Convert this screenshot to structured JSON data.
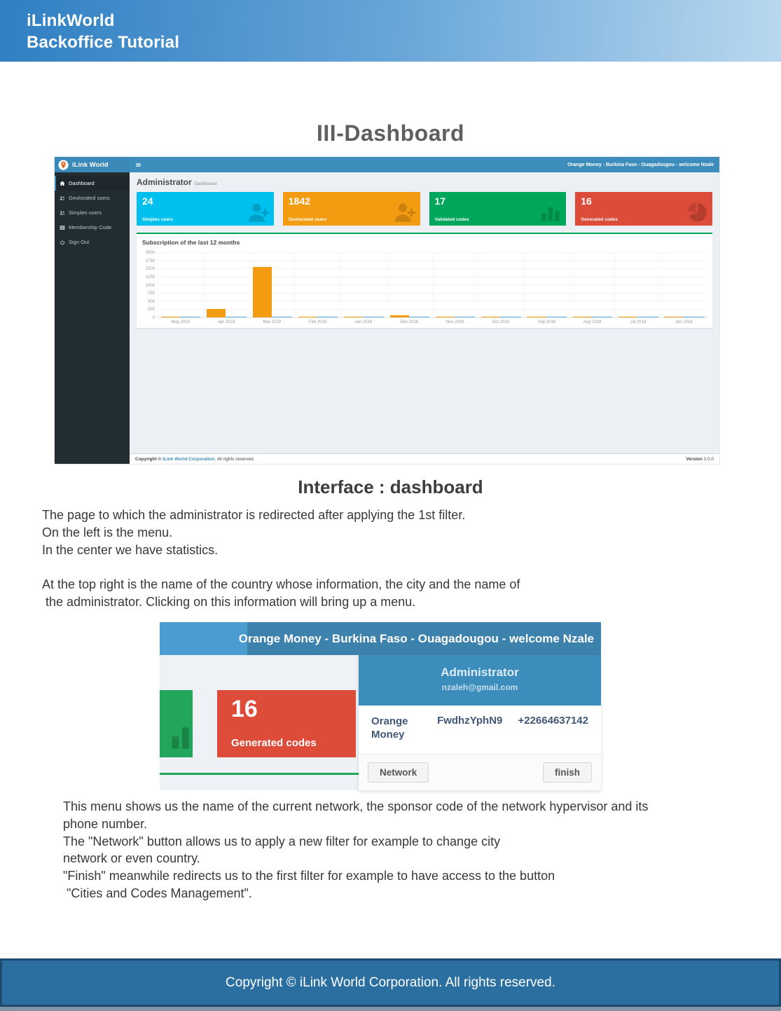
{
  "page": {
    "header": {
      "line1": "iLinkWorld",
      "line2": "Backoffice Tutorial"
    },
    "title": "III-Dashboard",
    "caption": "Interface : dashboard",
    "paragraph1": "The page to which the administrator is redirected after applying the 1st filter.\nOn the left is the menu.\nIn the center we have statistics.\n\nAt the top right is the name of the country whose information, the city and the name of\n the administrator. Clicking on this information will bring up a menu.",
    "paragraph2": "This menu shows us the name of the current network, the sponsor code of the network hypervisor and its\nphone number.\nThe \"Network\" button allows us to apply a new filter for example to change city\nnetwork or even country.\n\"Finish\" meanwhile redirects us to the first filter for example to have access to the button\n \"Cities and Codes Management\".",
    "footer_text": "Copyright © iLink World Corporation. All rights reserved."
  },
  "dashboard": {
    "brand": "iLink World",
    "user_menu_text": "Orange Money - Burkina Faso - Ouagadougou - welcome Nzale",
    "page_heading": "Administrator",
    "page_subheading": "Dashboard",
    "sidebar": [
      {
        "label": "Dashboard",
        "icon": "home-icon",
        "active": true
      },
      {
        "label": "Geolocated users",
        "icon": "users-icon",
        "active": false
      },
      {
        "label": "Simples users",
        "icon": "users-icon",
        "active": false
      },
      {
        "label": "Membership Code",
        "icon": "table-icon",
        "active": false
      },
      {
        "label": "Sign Out",
        "icon": "power-icon",
        "active": false
      }
    ],
    "cards": [
      {
        "value": "24",
        "label": "Simples users",
        "color": "#00c0ef",
        "icon": "user-plus-icon"
      },
      {
        "value": "1842",
        "label": "Geolocated users",
        "color": "#f39c12",
        "icon": "user-plus-icon"
      },
      {
        "value": "17",
        "label": "Validated codes",
        "color": "#00a65a",
        "icon": "bar-chart-icon"
      },
      {
        "value": "16",
        "label": "Generated codes",
        "color": "#dd4b39",
        "icon": "pie-chart-icon"
      }
    ],
    "panel_title": "Subscription of the last 12 months",
    "footer": {
      "copyright_prefix": "Copyright © ",
      "copyright_link": "iLink World Corporation.",
      "copyright_suffix": " All rights reserved.",
      "version_label": "Version",
      "version_value": " 2.0.0"
    }
  },
  "chart_data": {
    "type": "bar",
    "title": "Subscription of the last 12 months",
    "categories": [
      "May 2019",
      "Apr 2019",
      "Mar 2019",
      "Feb 2019",
      "Jan 2019",
      "Dec 2018",
      "Nov 2018",
      "Oct 2018",
      "Sep 2018",
      "Aug 2018",
      "Jul 2018",
      "Jun 2018"
    ],
    "series": [
      {
        "name": "orange",
        "color": "#f39c12",
        "values": [
          10,
          270,
          1560,
          15,
          10,
          70,
          15,
          10,
          10,
          10,
          10,
          10
        ]
      },
      {
        "name": "blue",
        "color": "#56b4e4",
        "values": [
          15,
          15,
          30,
          20,
          20,
          20,
          20,
          20,
          20,
          20,
          20,
          20
        ]
      }
    ],
    "xlabel": "",
    "ylabel": "",
    "ylim": [
      0,
      2000
    ],
    "yticks": [
      0,
      250,
      500,
      750,
      1000,
      1250,
      1500,
      1750,
      2000
    ],
    "grid": true,
    "legend": false
  },
  "user_menu": {
    "topbar_text": "Orange Money - Burkina Faso - Ouagadougou - welcome Nzale",
    "generated_codes_card": {
      "value": "16",
      "label": "Generated codes",
      "color": "#dd4b39"
    },
    "dropdown": {
      "title": "Administrator",
      "email": "nzaleh@gmail.com",
      "network_name": "Orange Money",
      "sponsor_code": "FwdhzYphN9",
      "phone": "+22664637142",
      "network_button": "Network",
      "finish_button": "finish"
    }
  },
  "colors": {
    "navbar_blue": "#3c8dbc",
    "sidebar_dark": "#222d32",
    "aqua": "#00c0ef",
    "orange": "#f39c12",
    "green": "#00a65a",
    "red": "#dd4b39",
    "chart_blue": "#56b4e4",
    "doc_footer_blue": "#2a6fa0"
  }
}
